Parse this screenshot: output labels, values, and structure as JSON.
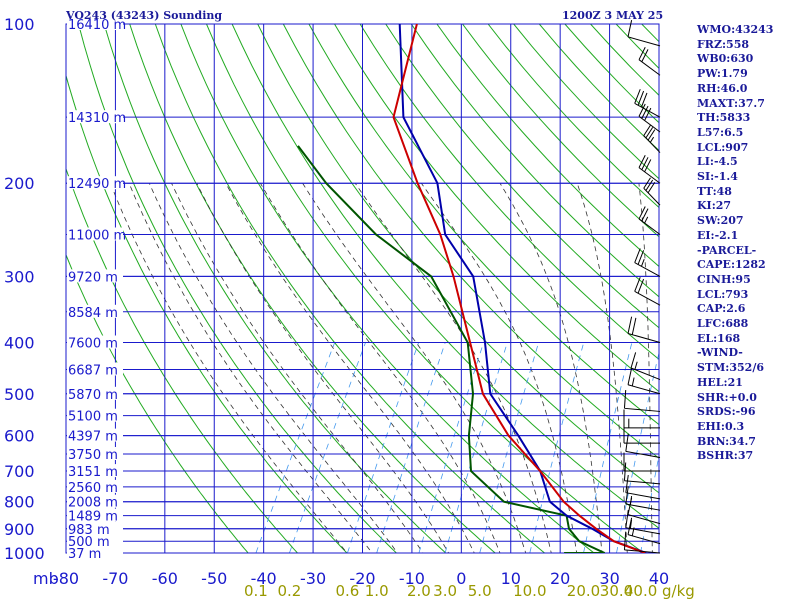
{
  "header": {
    "station": "VO243 (43243) Sounding",
    "time": "1200Z  3 MAY 25"
  },
  "indices": [
    "WMO:43243",
    "FRZ:558",
    "WB0:630",
    "PW:1.79",
    "RH:46.0",
    "MAXT:37.7",
    "TH:5833",
    "L57:6.5",
    "LCL:907",
    "LI:-4.5",
    "SI:-1.4",
    "TT:48",
    "KI:27",
    "SW:207",
    "EI:-2.1",
    "-PARCEL-",
    "CAPE:1282",
    "CINH:95",
    "LCL:793",
    "CAP:2.6",
    "LFC:688",
    "EL:168",
    "-WIND-",
    "STM:352/6",
    "HEL:21",
    "SHR:+0.0",
    "SRDS:-96",
    "EHI:0.3",
    "BRN:34.7",
    "BSHR:37"
  ],
  "colors": {
    "grid": "#1a1acc",
    "dry_adiabat": "#22aa22",
    "moist_adiabat": "#333333",
    "mixing_ratio": "#4499ee",
    "temperature": "#0000aa",
    "dewpoint": "#005500",
    "parcel": "#cc0000",
    "axis_text": "#1a1acc",
    "mixing_text": "#999900",
    "wind": "#000000"
  },
  "chart_data": {
    "type": "line",
    "title": "VO243 (43243) Sounding",
    "xlabel": "",
    "ylabel": "mb",
    "x_unit_label": "mb",
    "mixing_ratio_unit": "g/kg",
    "xlim": [
      -80,
      40
    ],
    "ylim": [
      1000,
      100
    ],
    "y_scale": "log-pressure",
    "grid": true,
    "pressure_ticks": [
      100,
      200,
      300,
      400,
      500,
      600,
      700,
      800,
      900,
      1000
    ],
    "temperature_ticks": [
      -80,
      -70,
      -60,
      -50,
      -40,
      -30,
      -20,
      -10,
      0,
      10,
      20,
      30,
      40
    ],
    "height_levels": [
      {
        "p": 100,
        "label": "16410 m"
      },
      {
        "p": 150,
        "label": "14310 m"
      },
      {
        "p": 200,
        "label": "12490 m"
      },
      {
        "p": 250,
        "label": "11000 m"
      },
      {
        "p": 300,
        "label": "9720 m"
      },
      {
        "p": 350,
        "label": "8584 m"
      },
      {
        "p": 400,
        "label": "7600 m"
      },
      {
        "p": 450,
        "label": "6687 m"
      },
      {
        "p": 500,
        "label": "5870 m"
      },
      {
        "p": 550,
        "label": "5100 m"
      },
      {
        "p": 600,
        "label": "4397 m"
      },
      {
        "p": 650,
        "label": "3750 m"
      },
      {
        "p": 700,
        "label": "3151 m"
      },
      {
        "p": 750,
        "label": "2560 m"
      },
      {
        "p": 800,
        "label": "2008 m"
      },
      {
        "p": 850,
        "label": "1489 m"
      },
      {
        "p": 900,
        "label": "983 m"
      },
      {
        "p": 950,
        "label": "500 m"
      },
      {
        "p": 1000,
        "label": "37 m"
      }
    ],
    "mixing_ratio_labels": [
      {
        "w": 0.1,
        "label": "0.1"
      },
      {
        "w": 0.2,
        "label": "0.2"
      },
      {
        "w": 0.6,
        "label": "0.6"
      },
      {
        "w": 1.0,
        "label": "1.0"
      },
      {
        "w": 2.0,
        "label": "2.0"
      },
      {
        "w": 3.0,
        "label": "3.0"
      },
      {
        "w": 5.0,
        "label": "5.0"
      },
      {
        "w": 10.0,
        "label": "10.0"
      },
      {
        "w": 20.0,
        "label": "20.0"
      },
      {
        "w": 30.0,
        "label": "30.0"
      },
      {
        "w": 40.0,
        "label": "40.0"
      }
    ],
    "series": [
      {
        "key": "temperature",
        "points": [
          [
            1000,
            37.4
          ],
          [
            950,
            29.5
          ],
          [
            900,
            23.7
          ],
          [
            850,
            17.0
          ],
          [
            800,
            12.0
          ],
          [
            700,
            6.5
          ],
          [
            600,
            -2.0
          ],
          [
            500,
            -12.5
          ],
          [
            400,
            -19.5
          ],
          [
            300,
            -29.5
          ],
          [
            250,
            -40.0
          ],
          [
            200,
            -47.5
          ],
          [
            150,
            -62.0
          ],
          [
            100,
            -73.5
          ]
        ]
      },
      {
        "key": "dewpoint",
        "points": [
          [
            1000,
            20.8
          ],
          [
            1000,
            29.0
          ],
          [
            950,
            22.5
          ],
          [
            900,
            19.0
          ],
          [
            850,
            17.0
          ],
          [
            800,
            2.7
          ],
          [
            700,
            -7.5
          ],
          [
            600,
            -12.0
          ],
          [
            500,
            -16.0
          ],
          [
            400,
            -23.0
          ],
          [
            300,
            -38.0
          ],
          [
            250,
            -54.0
          ],
          [
            200,
            -70.0
          ],
          [
            170,
            -80.0
          ]
        ]
      },
      {
        "key": "parcel",
        "points": [
          [
            1000,
            37.2
          ],
          [
            950,
            29.5
          ],
          [
            900,
            24.5
          ],
          [
            850,
            19.6
          ],
          [
            800,
            14.8
          ],
          [
            700,
            6.5
          ],
          [
            600,
            -4.0
          ],
          [
            500,
            -14.0
          ],
          [
            400,
            -22.5
          ],
          [
            300,
            -33.5
          ],
          [
            250,
            -41.0
          ],
          [
            200,
            -51.5
          ],
          [
            150,
            -64.0
          ],
          [
            100,
            -70.0
          ]
        ]
      }
    ],
    "wind_barbs": [
      {
        "p": 1000,
        "dir": 280,
        "spd": 10
      },
      {
        "p": 960,
        "dir": 300,
        "spd": 15
      },
      {
        "p": 920,
        "dir": 290,
        "spd": 15
      },
      {
        "p": 880,
        "dir": 300,
        "spd": 10
      },
      {
        "p": 830,
        "dir": 290,
        "spd": 15
      },
      {
        "p": 790,
        "dir": 290,
        "spd": 10
      },
      {
        "p": 740,
        "dir": 280,
        "spd": 10
      },
      {
        "p": 700,
        "dir": 270,
        "spd": 10
      },
      {
        "p": 660,
        "dir": 290,
        "spd": 10
      },
      {
        "p": 620,
        "dir": 270,
        "spd": 10
      },
      {
        "p": 580,
        "dir": 270,
        "spd": 15
      },
      {
        "p": 540,
        "dir": 280,
        "spd": 10
      },
      {
        "p": 500,
        "dir": 300,
        "spd": 15
      },
      {
        "p": 470,
        "dir": 310,
        "spd": 15
      },
      {
        "p": 400,
        "dir": 300,
        "spd": 20
      },
      {
        "p": 340,
        "dir": 320,
        "spd": 20
      },
      {
        "p": 300,
        "dir": 320,
        "spd": 25
      },
      {
        "p": 250,
        "dir": 330,
        "spd": 25
      },
      {
        "p": 220,
        "dir": 340,
        "spd": 30
      },
      {
        "p": 200,
        "dir": 330,
        "spd": 30
      },
      {
        "p": 175,
        "dir": 340,
        "spd": 35
      },
      {
        "p": 160,
        "dir": 330,
        "spd": 30
      },
      {
        "p": 150,
        "dir": 320,
        "spd": 30
      },
      {
        "p": 125,
        "dir": 330,
        "spd": 20
      },
      {
        "p": 110,
        "dir": 300,
        "spd": 10
      }
    ]
  }
}
